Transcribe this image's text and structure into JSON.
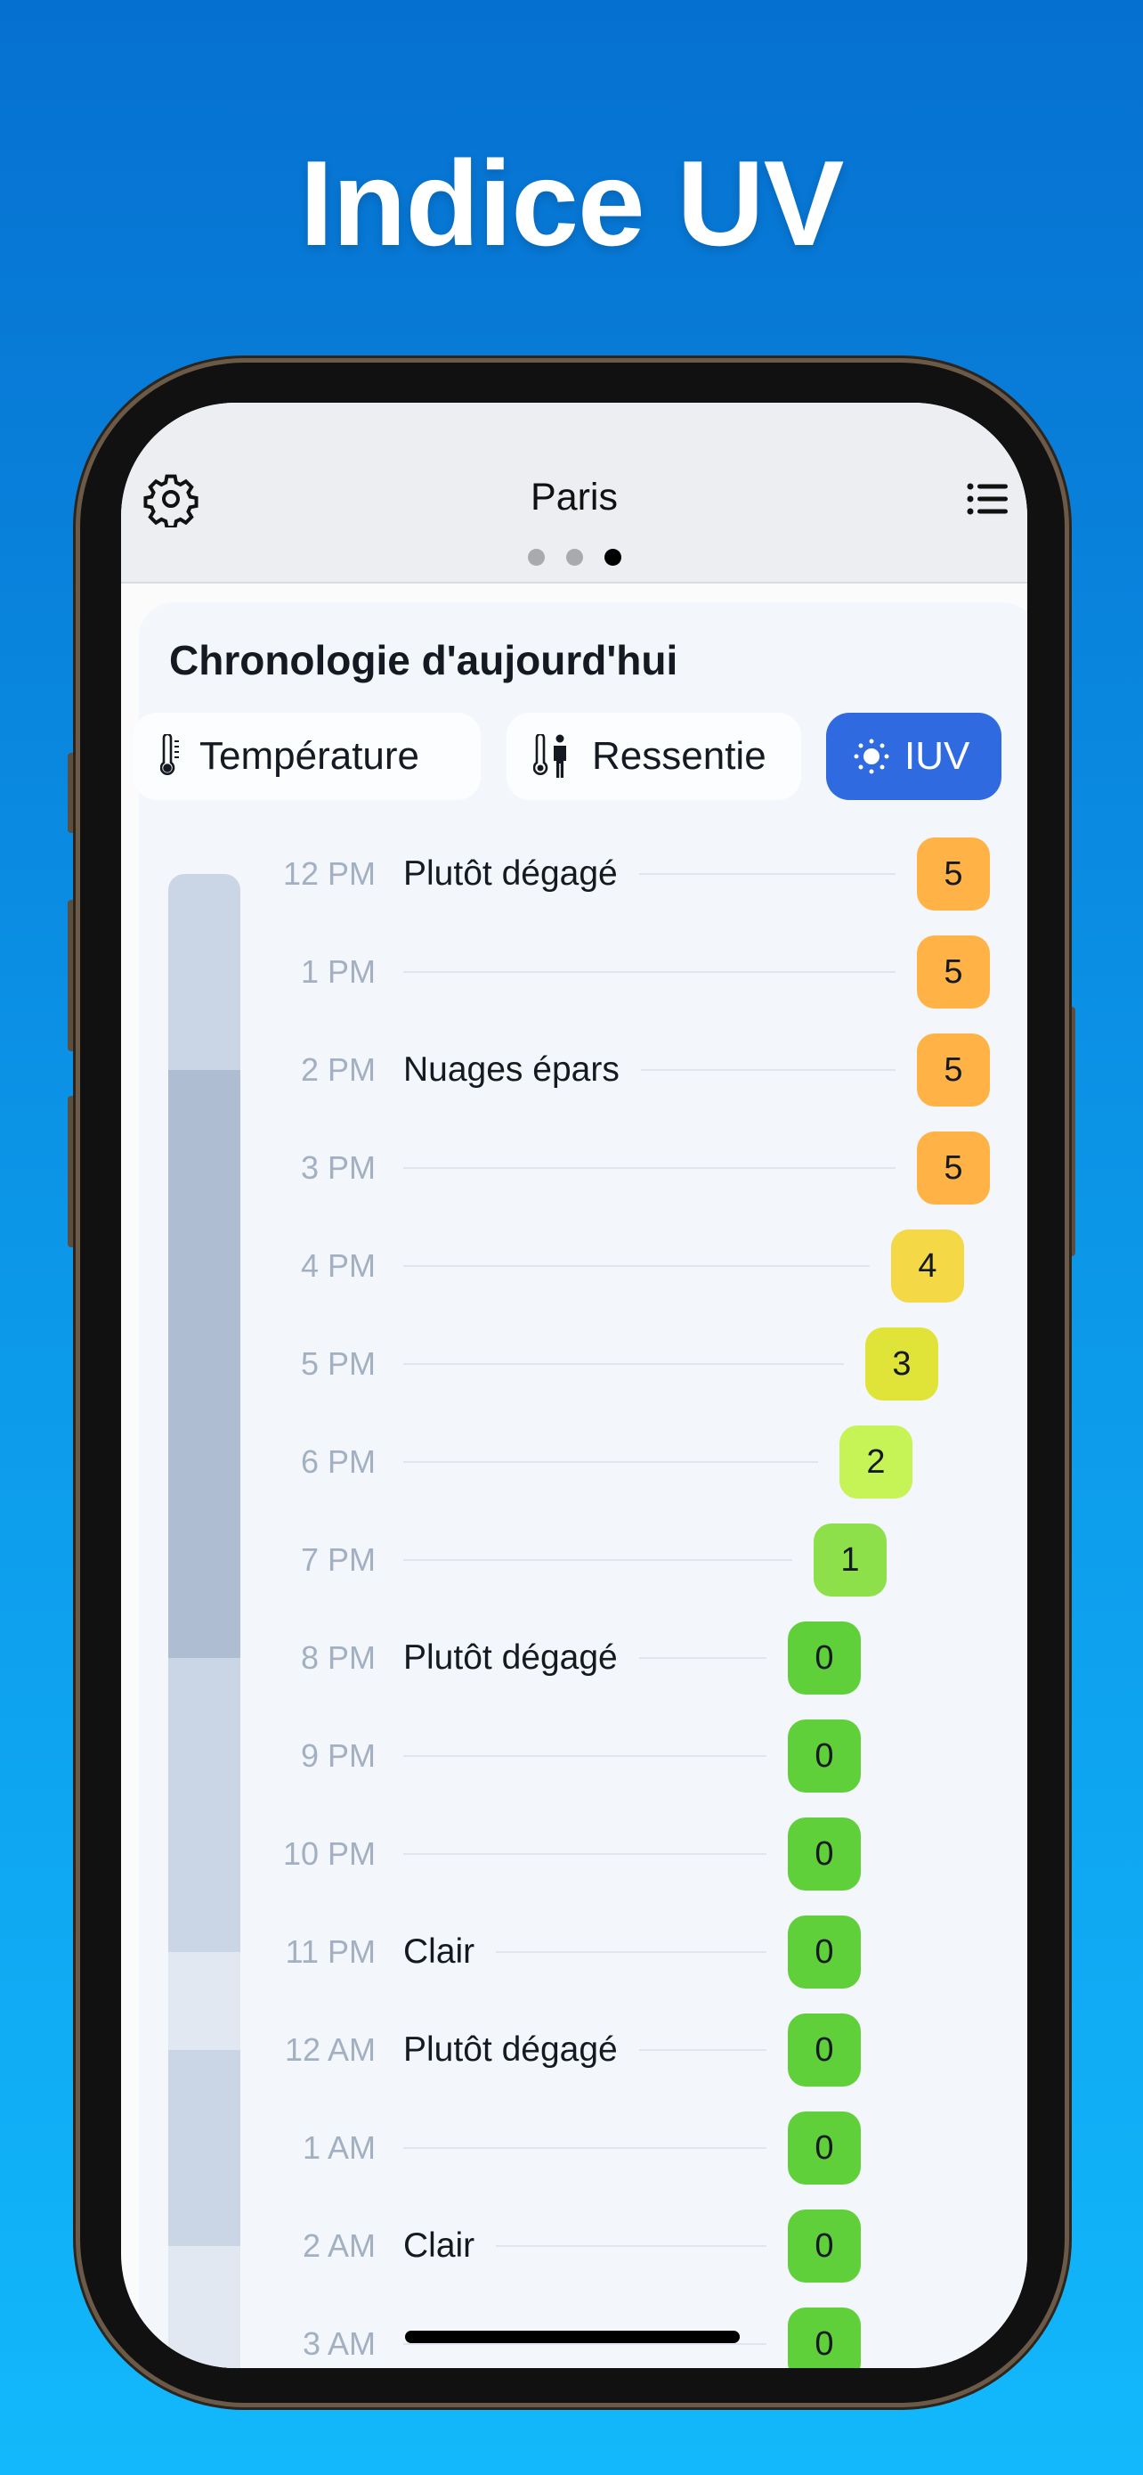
{
  "headline": "Indice UV",
  "header": {
    "city": "Paris",
    "page_dots": 3,
    "active_dot": 2
  },
  "card": {
    "title": "Chronologie d'aujourd'hui",
    "tabs": [
      {
        "label": "Température",
        "icon": "thermometer-icon",
        "active": false
      },
      {
        "label": "Ressentie",
        "icon": "thermometer-person-icon",
        "active": false
      },
      {
        "label": "IUV",
        "icon": "sun-icon",
        "active": true
      }
    ]
  },
  "colors": {
    "accent": "#2f6ae0",
    "uv": {
      "0": "#5fcf3a",
      "1": "#8ee04a",
      "2": "#c6f457",
      "3": "#e0e438",
      "4": "#f5d846",
      "5": "#ffb347"
    },
    "condition_bar": {
      "Plutôt dégagé": "#cad5e6",
      "Nuages épars": "#aebdd1",
      "Clair": "#e2e8f1"
    }
  },
  "rows": [
    {
      "time": "12 PM",
      "condition": "Plutôt dégagé",
      "uv": 5,
      "sky": "Plutôt dégagé"
    },
    {
      "time": "1 PM",
      "condition": "",
      "uv": 5,
      "sky": "Plutôt dégagé"
    },
    {
      "time": "2 PM",
      "condition": "Nuages épars",
      "uv": 5,
      "sky": "Nuages épars"
    },
    {
      "time": "3 PM",
      "condition": "",
      "uv": 5,
      "sky": "Nuages épars"
    },
    {
      "time": "4 PM",
      "condition": "",
      "uv": 4,
      "sky": "Nuages épars"
    },
    {
      "time": "5 PM",
      "condition": "",
      "uv": 3,
      "sky": "Nuages épars"
    },
    {
      "time": "6 PM",
      "condition": "",
      "uv": 2,
      "sky": "Nuages épars"
    },
    {
      "time": "7 PM",
      "condition": "",
      "uv": 1,
      "sky": "Nuages épars"
    },
    {
      "time": "8 PM",
      "condition": "Plutôt dégagé",
      "uv": 0,
      "sky": "Plutôt dégagé"
    },
    {
      "time": "9 PM",
      "condition": "",
      "uv": 0,
      "sky": "Plutôt dégagé"
    },
    {
      "time": "10 PM",
      "condition": "",
      "uv": 0,
      "sky": "Plutôt dégagé"
    },
    {
      "time": "11 PM",
      "condition": "Clair",
      "uv": 0,
      "sky": "Clair"
    },
    {
      "time": "12 AM",
      "condition": "Plutôt dégagé",
      "uv": 0,
      "sky": "Plutôt dégagé"
    },
    {
      "time": "1 AM",
      "condition": "",
      "uv": 0,
      "sky": "Plutôt dégagé"
    },
    {
      "time": "2 AM",
      "condition": "Clair",
      "uv": 0,
      "sky": "Clair"
    },
    {
      "time": "3 AM",
      "condition": "",
      "uv": 0,
      "sky": "Clair"
    }
  ]
}
